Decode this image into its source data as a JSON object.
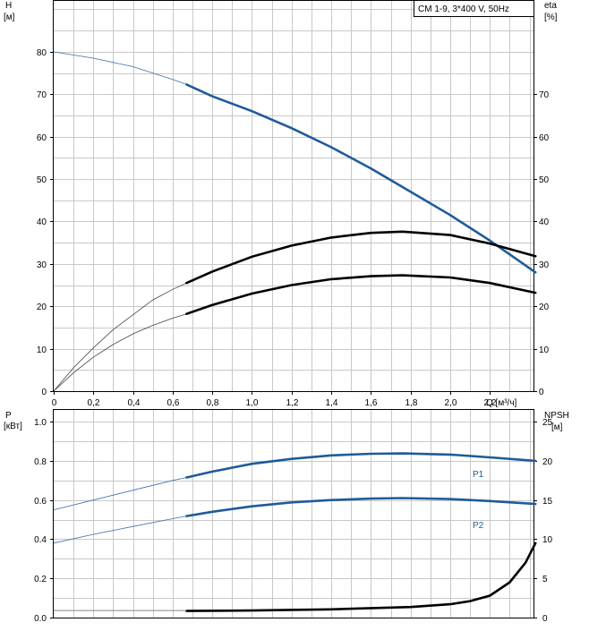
{
  "colors": {
    "blue": "#1f5b99",
    "black": "#000000",
    "grid": "#c8c8c8",
    "thin_blue": "#3d6fa8"
  },
  "legend_text": "CM 1-9, 3*400 V, 50Hz",
  "chart_data": [
    {
      "type": "line",
      "left_axis": {
        "label": "H",
        "unit": "[м]",
        "ticks": [
          "0",
          "10",
          "20",
          "30",
          "40",
          "50",
          "60",
          "70",
          "80"
        ],
        "ylim": [
          0,
          92
        ]
      },
      "right_axis": {
        "label": "eta",
        "unit": "[%]",
        "ticks": [
          "0",
          "10",
          "20",
          "30",
          "40",
          "50",
          "60",
          "70"
        ],
        "ylim": [
          0,
          92
        ]
      },
      "x_axis": {
        "label": "Q [м³/ч]",
        "ticks": [
          "0",
          "0,2",
          "0,4",
          "0,6",
          "0,8",
          "1,0",
          "1,2",
          "1,4",
          "1,6",
          "1,8",
          "2,0",
          "2,2"
        ],
        "xlim": [
          0,
          2.42
        ]
      },
      "grid": true,
      "series": [
        {
          "role": "head",
          "axis": "left",
          "color": "blue",
          "highlight_from": 0.67,
          "x": [
            0,
            0.2,
            0.4,
            0.6,
            0.67,
            0.8,
            1.0,
            1.2,
            1.4,
            1.6,
            1.8,
            2.0,
            2.2,
            2.43
          ],
          "y": [
            80,
            78.5,
            76.5,
            73.5,
            72.3,
            69.5,
            66,
            62,
            57.5,
            52.5,
            47,
            41.5,
            35.5,
            28
          ]
        },
        {
          "role": "efficiency",
          "axis": "right",
          "color": "black",
          "highlight_from": 0.67,
          "x": [
            0,
            0.1,
            0.2,
            0.3,
            0.4,
            0.5,
            0.6,
            0.67,
            0.8,
            1.0,
            1.2,
            1.4,
            1.6,
            1.76,
            2.0,
            2.2,
            2.43
          ],
          "y": [
            0,
            5.5,
            10.2,
            14.5,
            18,
            21.5,
            24,
            25.5,
            28.2,
            31.7,
            34.3,
            36.2,
            37.3,
            37.6,
            36.8,
            34.8,
            31.8
          ]
        },
        {
          "role": "efficiency-pump",
          "axis": "right",
          "color": "black",
          "highlight_from": 0.67,
          "x": [
            0,
            0.1,
            0.2,
            0.3,
            0.4,
            0.5,
            0.6,
            0.67,
            0.8,
            1.0,
            1.2,
            1.4,
            1.6,
            1.76,
            2.0,
            2.2,
            2.43
          ],
          "y": [
            0,
            4.3,
            8,
            11,
            13.5,
            15.5,
            17.2,
            18.2,
            20.3,
            23,
            25,
            26.4,
            27.1,
            27.3,
            26.8,
            25.5,
            23.2
          ]
        }
      ]
    },
    {
      "type": "line",
      "left_axis": {
        "label": "P",
        "unit": "[кВт]",
        "ticks": [
          "0.0",
          "0.2",
          "0.4",
          "0.6",
          "0.8",
          "1.0"
        ],
        "ylim": [
          0,
          1.06
        ]
      },
      "right_axis": {
        "label": "NPSH",
        "unit": "[м]",
        "ticks": [
          "0",
          "5",
          "10",
          "15",
          "20",
          "25"
        ],
        "ylim": [
          0,
          26.5
        ]
      },
      "x_axis": {
        "xlim": [
          0,
          2.42
        ]
      },
      "grid": true,
      "series": [
        {
          "name": "P1",
          "axis": "left",
          "color": "blue",
          "highlight_from": 0.67,
          "x": [
            0,
            0.2,
            0.4,
            0.6,
            0.67,
            0.8,
            1.0,
            1.2,
            1.4,
            1.6,
            1.76,
            2.0,
            2.2,
            2.43
          ],
          "y": [
            0.55,
            0.6,
            0.65,
            0.7,
            0.715,
            0.745,
            0.785,
            0.81,
            0.828,
            0.836,
            0.838,
            0.832,
            0.818,
            0.8
          ]
        },
        {
          "name": "P2",
          "axis": "left",
          "color": "blue",
          "highlight_from": 0.67,
          "x": [
            0,
            0.2,
            0.4,
            0.6,
            0.67,
            0.8,
            1.0,
            1.2,
            1.4,
            1.6,
            1.76,
            2.0,
            2.2,
            2.43
          ],
          "y": [
            0.38,
            0.425,
            0.465,
            0.505,
            0.518,
            0.54,
            0.568,
            0.588,
            0.6,
            0.607,
            0.61,
            0.605,
            0.595,
            0.58
          ]
        },
        {
          "role": "npsh",
          "axis": "right",
          "color": "black",
          "highlight_from": 0.67,
          "x": [
            0.67,
            1.0,
            1.4,
            1.8,
            2.0,
            2.1,
            2.2,
            2.3,
            2.38,
            2.43
          ],
          "y": [
            0.85,
            0.9,
            1.05,
            1.35,
            1.7,
            2.1,
            2.8,
            4.5,
            7,
            9.5
          ]
        },
        {
          "role": "npsh-reference",
          "axis": "right",
          "color": "black",
          "style": "thin",
          "x": [
            0,
            0.67
          ],
          "y": [
            0.9,
            0.9
          ]
        }
      ]
    }
  ]
}
